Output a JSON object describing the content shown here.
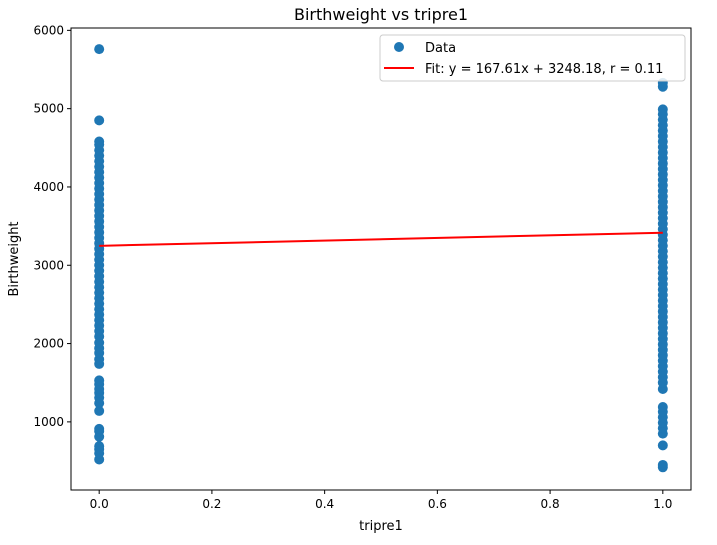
{
  "chart_data": {
    "type": "scatter",
    "title": "Birthweight vs tripre1",
    "xlabel": "tripre1",
    "ylabel": "Birthweight",
    "xlim": [
      -0.05,
      1.05
    ],
    "ylim": [
      130,
      6030
    ],
    "xticks": [
      0.0,
      0.2,
      0.4,
      0.6,
      0.8,
      1.0
    ],
    "xtick_labels": [
      "0.0",
      "0.2",
      "0.4",
      "0.6",
      "0.8",
      "1.0"
    ],
    "yticks": [
      1000,
      2000,
      3000,
      4000,
      5000,
      6000
    ],
    "ytick_labels": [
      "1000",
      "2000",
      "3000",
      "4000",
      "5000",
      "6000"
    ],
    "grid": false,
    "legend_position": "top-right",
    "colors": {
      "scatter": "#1f77b4",
      "fit": "#ff0000"
    },
    "series": [
      {
        "name": "Data",
        "kind": "scatter",
        "points": [
          [
            0,
            520
          ],
          [
            0,
            600
          ],
          [
            0,
            650
          ],
          [
            0,
            690
          ],
          [
            0,
            810
          ],
          [
            0,
            880
          ],
          [
            0,
            910
          ],
          [
            0,
            1140
          ],
          [
            0,
            1240
          ],
          [
            0,
            1310
          ],
          [
            0,
            1370
          ],
          [
            0,
            1420
          ],
          [
            0,
            1480
          ],
          [
            0,
            1530
          ],
          [
            0,
            1740
          ],
          [
            0,
            1800
          ],
          [
            0,
            1880
          ],
          [
            0,
            1940
          ],
          [
            0,
            2010
          ],
          [
            0,
            2090
          ],
          [
            0,
            2160
          ],
          [
            0,
            2230
          ],
          [
            0,
            2300
          ],
          [
            0,
            2370
          ],
          [
            0,
            2440
          ],
          [
            0,
            2510
          ],
          [
            0,
            2580
          ],
          [
            0,
            2650
          ],
          [
            0,
            2720
          ],
          [
            0,
            2790
          ],
          [
            0,
            2860
          ],
          [
            0,
            2930
          ],
          [
            0,
            3000
          ],
          [
            0,
            3070
          ],
          [
            0,
            3140
          ],
          [
            0,
            3210
          ],
          [
            0,
            3280
          ],
          [
            0,
            3350
          ],
          [
            0,
            3420
          ],
          [
            0,
            3490
          ],
          [
            0,
            3560
          ],
          [
            0,
            3630
          ],
          [
            0,
            3700
          ],
          [
            0,
            3770
          ],
          [
            0,
            3840
          ],
          [
            0,
            3910
          ],
          [
            0,
            3980
          ],
          [
            0,
            4050
          ],
          [
            0,
            4120
          ],
          [
            0,
            4190
          ],
          [
            0,
            4260
          ],
          [
            0,
            4330
          ],
          [
            0,
            4400
          ],
          [
            0,
            4470
          ],
          [
            0,
            4540
          ],
          [
            0,
            4580
          ],
          [
            0,
            4850
          ],
          [
            0,
            5760
          ],
          [
            1,
            420
          ],
          [
            1,
            450
          ],
          [
            1,
            700
          ],
          [
            1,
            850
          ],
          [
            1,
            920
          ],
          [
            1,
            990
          ],
          [
            1,
            1060
          ],
          [
            1,
            1130
          ],
          [
            1,
            1190
          ],
          [
            1,
            1420
          ],
          [
            1,
            1500
          ],
          [
            1,
            1570
          ],
          [
            1,
            1640
          ],
          [
            1,
            1710
          ],
          [
            1,
            1780
          ],
          [
            1,
            1850
          ],
          [
            1,
            1920
          ],
          [
            1,
            1990
          ],
          [
            1,
            2060
          ],
          [
            1,
            2130
          ],
          [
            1,
            2200
          ],
          [
            1,
            2270
          ],
          [
            1,
            2340
          ],
          [
            1,
            2410
          ],
          [
            1,
            2480
          ],
          [
            1,
            2550
          ],
          [
            1,
            2620
          ],
          [
            1,
            2690
          ],
          [
            1,
            2760
          ],
          [
            1,
            2830
          ],
          [
            1,
            2900
          ],
          [
            1,
            2970
          ],
          [
            1,
            3040
          ],
          [
            1,
            3110
          ],
          [
            1,
            3180
          ],
          [
            1,
            3250
          ],
          [
            1,
            3320
          ],
          [
            1,
            3390
          ],
          [
            1,
            3460
          ],
          [
            1,
            3530
          ],
          [
            1,
            3600
          ],
          [
            1,
            3670
          ],
          [
            1,
            3740
          ],
          [
            1,
            3810
          ],
          [
            1,
            3880
          ],
          [
            1,
            3950
          ],
          [
            1,
            4020
          ],
          [
            1,
            4090
          ],
          [
            1,
            4160
          ],
          [
            1,
            4230
          ],
          [
            1,
            4300
          ],
          [
            1,
            4370
          ],
          [
            1,
            4440
          ],
          [
            1,
            4510
          ],
          [
            1,
            4580
          ],
          [
            1,
            4650
          ],
          [
            1,
            4720
          ],
          [
            1,
            4790
          ],
          [
            1,
            4860
          ],
          [
            1,
            4930
          ],
          [
            1,
            4990
          ],
          [
            1,
            5280
          ],
          [
            1,
            5330
          ]
        ]
      },
      {
        "name": "Fit: y = 167.61x + 3248.18, r = 0.11",
        "kind": "line",
        "x": [
          0,
          1
        ],
        "y": [
          3248.18,
          3415.79
        ]
      }
    ]
  }
}
